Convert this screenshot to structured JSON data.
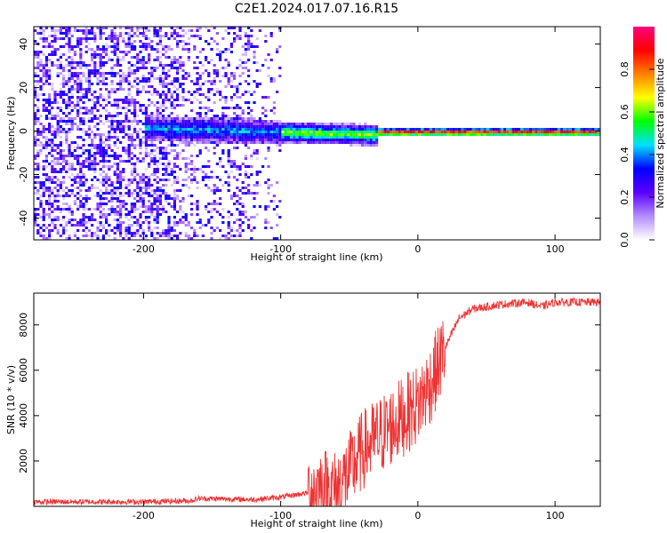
{
  "title": "C2E1.2024.017.07.16.R15",
  "chart_data": [
    {
      "type": "heatmap",
      "xlabel": "Height of straight line (km)",
      "ylabel": "Frequency (Hz)",
      "xlim": [
        -280,
        133
      ],
      "ylim": [
        -50,
        48
      ],
      "xticks": [
        -200,
        -100,
        0,
        100
      ],
      "xtick_labels": [
        "-200",
        "-100",
        "0",
        "100"
      ],
      "yticks": [
        -40,
        -20,
        0,
        20,
        40
      ],
      "ytick_labels": [
        "-40",
        "-20",
        "0",
        "20",
        "40"
      ],
      "colorbar": {
        "label": "Normalized spectral amplitude",
        "range": [
          0,
          1
        ],
        "ticks": [
          0.0,
          0.2,
          0.4,
          0.6,
          0.8
        ],
        "tick_labels": [
          "0.0",
          "0.2",
          "0.4",
          "0.6",
          "0.8"
        ],
        "colors": [
          "#ffffff",
          "#b48cff",
          "#5a00ff",
          "#0000ff",
          "#00e0ff",
          "#00ff00",
          "#ffff00",
          "#ff8000",
          "#ff0000",
          "#ff0080"
        ]
      },
      "grid": false,
      "description_features": {
        "ridge_center_hz": 0,
        "noise_region_x": [
          -280,
          -100
        ],
        "strong_line_x": [
          -30,
          133
        ]
      }
    },
    {
      "type": "line",
      "xlabel": "Height of straight line (km)",
      "ylabel": "SNR (10 * v/v)",
      "xlim": [
        -280,
        133
      ],
      "ylim": [
        0,
        9400
      ],
      "xticks": [
        -200,
        -100,
        0,
        100
      ],
      "xtick_labels": [
        "-200",
        "-100",
        "0",
        "100"
      ],
      "yticks": [
        2000,
        4000,
        6000,
        8000
      ],
      "ytick_labels": [
        "2000",
        "4000",
        "6000",
        "8000"
      ],
      "series": [
        {
          "color": "#ee3333",
          "x": [
            -280,
            -200,
            -165,
            -160,
            -120,
            -100,
            -80,
            -70,
            -60,
            -50,
            -40,
            -30,
            -20,
            -10,
            0,
            10,
            20,
            30,
            40,
            60,
            80,
            90,
            100,
            120,
            133
          ],
          "y": [
            200,
            200,
            250,
            350,
            300,
            400,
            600,
            900,
            700,
            1500,
            2500,
            3000,
            3500,
            4000,
            4500,
            5500,
            7000,
            8300,
            8700,
            8900,
            9000,
            8800,
            9000,
            9000,
            9000
          ]
        }
      ],
      "grid": false
    }
  ]
}
